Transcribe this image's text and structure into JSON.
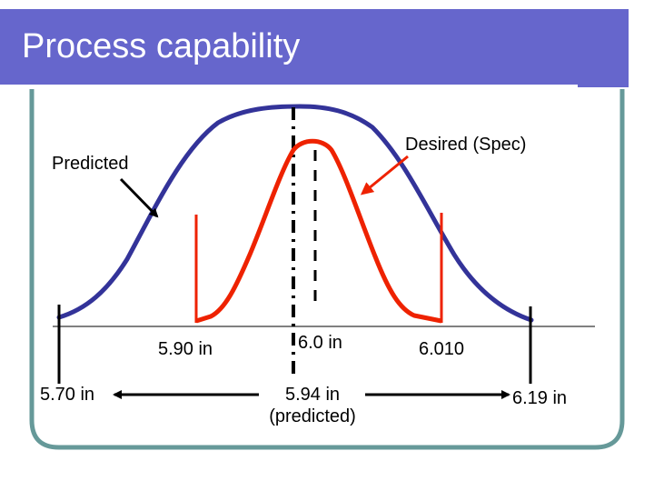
{
  "slide": {
    "title": "Process capability"
  },
  "labels": {
    "predicted": "Predicted",
    "desired": "Desired (Spec)",
    "spec_lower": "5.90 in",
    "spec_center": "6.0 in",
    "spec_upper": "6.010",
    "pred_lower": "5.70 in",
    "pred_mean": "5.94 in",
    "pred_mean_note": "(predicted)",
    "pred_upper": "6.19 in"
  },
  "colors": {
    "title_bar": "#6666cc",
    "predicted_curve": "#333399",
    "spec_curve": "#ee2200",
    "frame": "#669999",
    "text": "#000000"
  }
}
